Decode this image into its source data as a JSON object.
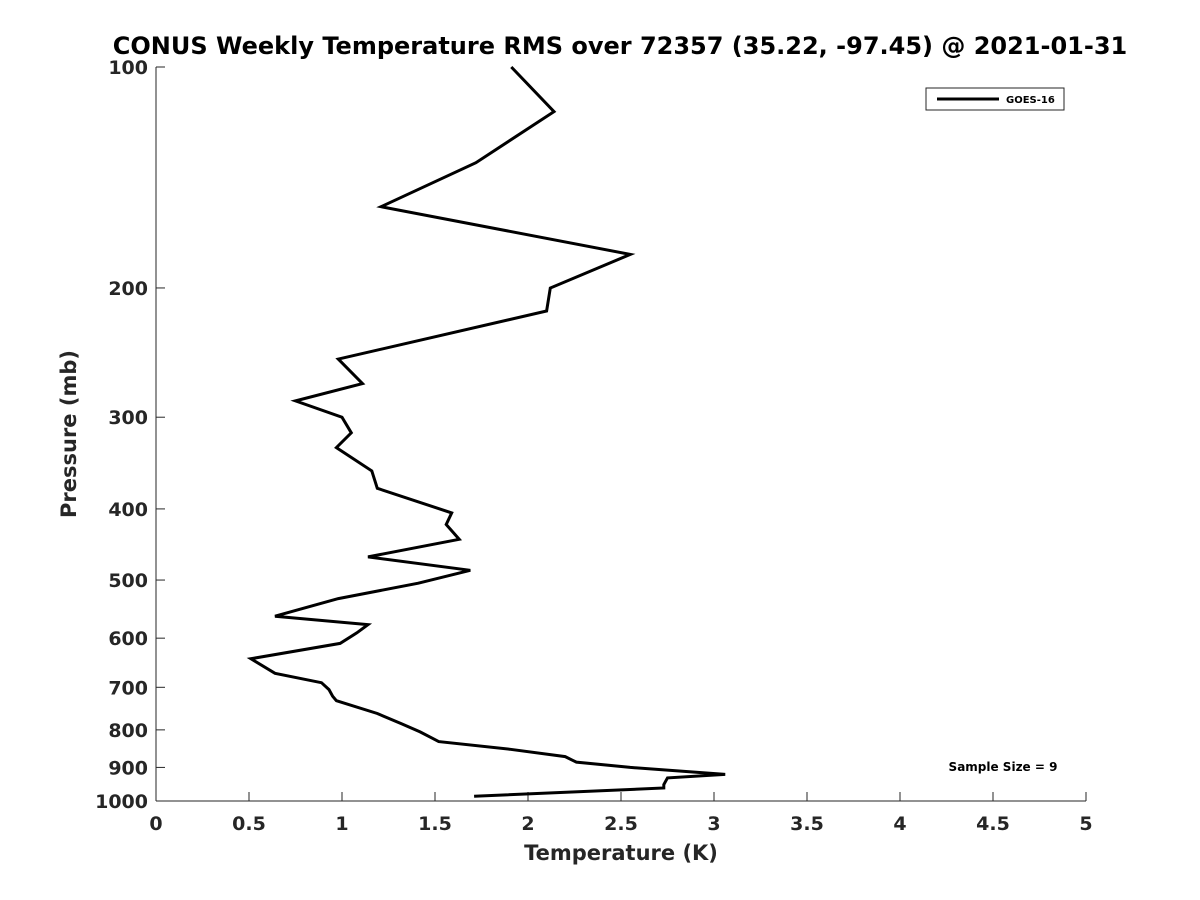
{
  "chart_data": {
    "type": "line",
    "title": "CONUS Weekly Temperature RMS over 72357 (35.22, -97.45) @ 2021-01-31",
    "xlabel": "Temperature (K)",
    "ylabel": "Pressure (mb)",
    "xlim": [
      0,
      5
    ],
    "ylim": [
      100,
      1000
    ],
    "y_scale": "log",
    "y_reversed": true,
    "grid": false,
    "legend_position": "top-right",
    "x_ticks": [
      0,
      0.5,
      1,
      1.5,
      2,
      2.5,
      3,
      3.5,
      4,
      4.5,
      5
    ],
    "x_tick_labels": [
      "0",
      "0.5",
      "1",
      "1.5",
      "2",
      "2.5",
      "3",
      "3.5",
      "4",
      "4.5",
      "5"
    ],
    "y_ticks": [
      100,
      200,
      300,
      400,
      500,
      600,
      700,
      800,
      900,
      1000
    ],
    "y_tick_labels": [
      "100",
      "200",
      "300",
      "400",
      "500",
      "600",
      "700",
      "800",
      "900",
      "1000"
    ],
    "series": [
      {
        "name": "GOES-16",
        "color": "#000000",
        "points": [
          [
            1.91,
            100
          ],
          [
            2.14,
            115
          ],
          [
            1.72,
            135
          ],
          [
            1.21,
            155
          ],
          [
            2.55,
            180
          ],
          [
            2.12,
            200
          ],
          [
            2.1,
            215
          ],
          [
            0.98,
            250
          ],
          [
            1.11,
            270
          ],
          [
            0.75,
            285
          ],
          [
            1.0,
            300
          ],
          [
            1.05,
            315
          ],
          [
            0.97,
            330
          ],
          [
            1.16,
            355
          ],
          [
            1.19,
            375
          ],
          [
            1.59,
            405
          ],
          [
            1.56,
            420
          ],
          [
            1.63,
            440
          ],
          [
            1.14,
            465
          ],
          [
            1.69,
            485
          ],
          [
            1.41,
            505
          ],
          [
            0.98,
            530
          ],
          [
            0.64,
            560
          ],
          [
            1.14,
            575
          ],
          [
            1.08,
            590
          ],
          [
            0.99,
            610
          ],
          [
            0.51,
            640
          ],
          [
            0.64,
            670
          ],
          [
            0.89,
            690
          ],
          [
            0.93,
            705
          ],
          [
            0.95,
            720
          ],
          [
            0.97,
            730
          ],
          [
            1.19,
            760
          ],
          [
            1.32,
            785
          ],
          [
            1.42,
            805
          ],
          [
            1.48,
            820
          ],
          [
            1.52,
            830
          ],
          [
            1.9,
            850
          ],
          [
            2.2,
            870
          ],
          [
            2.24,
            880
          ],
          [
            2.26,
            885
          ],
          [
            2.55,
            900
          ],
          [
            3.06,
            920
          ],
          [
            2.75,
            930
          ],
          [
            2.74,
            940
          ],
          [
            2.73,
            950
          ],
          [
            2.73,
            960
          ],
          [
            1.71,
            985
          ]
        ]
      }
    ],
    "annotations": [
      "Sample Size = 9"
    ]
  }
}
